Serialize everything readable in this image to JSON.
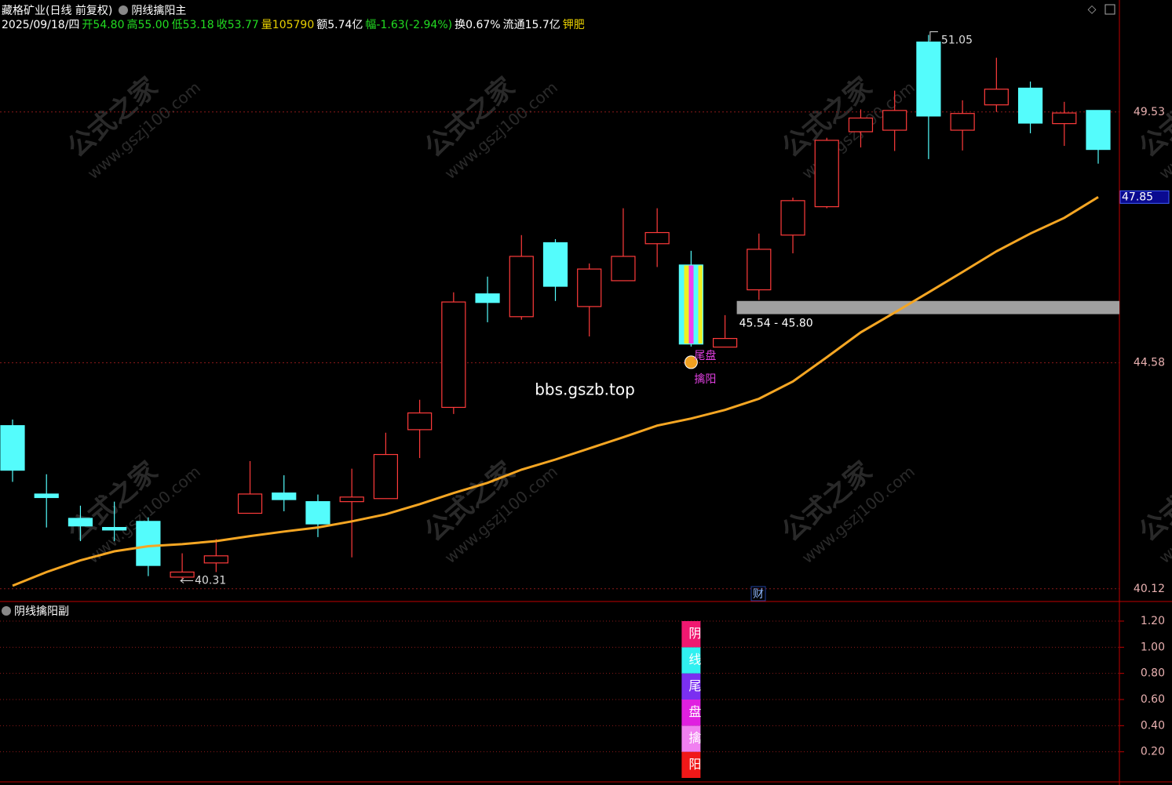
{
  "chart_data": [
    {
      "type": "candlestick",
      "title": "藏格矿业(日线 前复权)",
      "indicator": "阴线擒阳主",
      "quote": [
        {
          "text": "2025/09/18/四",
          "color": "#ffffff"
        },
        {
          "text": "开54.80",
          "color": "#22dd22"
        },
        {
          "text": "高55.00",
          "color": "#22dd22"
        },
        {
          "text": "低53.18",
          "color": "#22dd22"
        },
        {
          "text": "收53.77",
          "color": "#22dd22"
        },
        {
          "text": "量105790",
          "color": "#e8d000"
        },
        {
          "text": "额5.74亿",
          "color": "#ffffff"
        },
        {
          "text": "幅-1.63(-2.94%)",
          "color": "#22dd22"
        },
        {
          "text": "换0.67%",
          "color": "#ffffff"
        },
        {
          "text": "流通15.7亿",
          "color": "#ffffff"
        },
        {
          "text": "钾肥",
          "color": "#e8d000"
        }
      ],
      "open": [
        43.34,
        41.99,
        41.51,
        41.33,
        41.45,
        40.35,
        40.63,
        41.61,
        42.01,
        41.84,
        41.84,
        41.9,
        43.26,
        43.7,
        45.94,
        45.49,
        46.95,
        45.69,
        46.2,
        46.93,
        46.51,
        44.89,
        46.02,
        47.1,
        47.66,
        49.14,
        49.17,
        50.91,
        49.17,
        49.67,
        50.0,
        49.3,
        49.56
      ],
      "high": [
        43.46,
        42.38,
        41.76,
        41.84,
        41.53,
        40.82,
        41.1,
        42.64,
        42.36,
        41.98,
        42.49,
        43.2,
        43.85,
        45.97,
        46.28,
        47.1,
        47.02,
        46.54,
        47.63,
        47.63,
        46.79,
        45.52,
        47.13,
        47.84,
        49.02,
        49.58,
        49.95,
        51.05,
        49.76,
        50.6,
        50.13,
        49.73,
        49.56
      ],
      "low": [
        42.23,
        41.33,
        41.06,
        41.06,
        40.37,
        40.31,
        40.45,
        41.61,
        41.65,
        41.14,
        40.74,
        41.9,
        42.7,
        43.57,
        45.38,
        45.43,
        45.8,
        45.1,
        46.2,
        46.47,
        44.9,
        44.89,
        45.82,
        46.74,
        47.63,
        48.83,
        48.76,
        48.6,
        48.77,
        49.53,
        49.11,
        48.86,
        48.51
      ],
      "close": [
        42.46,
        41.92,
        41.36,
        41.28,
        40.58,
        40.45,
        40.77,
        41.99,
        41.88,
        41.4,
        41.93,
        42.77,
        43.59,
        45.78,
        45.77,
        46.68,
        46.09,
        46.43,
        46.68,
        47.15,
        44.95,
        45.06,
        46.82,
        47.78,
        48.97,
        49.41,
        49.56,
        49.45,
        49.5,
        49.98,
        49.31,
        49.51,
        48.79
      ],
      "up_color": "#ff3b3b",
      "down_color": "#54fcfc",
      "ma": {
        "color": "#f5a623",
        "values": [
          40.18,
          40.45,
          40.68,
          40.86,
          40.96,
          41.0,
          41.06,
          41.16,
          41.25,
          41.33,
          41.45,
          41.59,
          41.79,
          42.01,
          42.21,
          42.47,
          42.67,
          42.89,
          43.11,
          43.34,
          43.48,
          43.65,
          43.87,
          44.21,
          44.69,
          45.18,
          45.57,
          45.97,
          46.37,
          46.78,
          47.13,
          47.44,
          47.85
        ]
      },
      "zone": {
        "low": 45.54,
        "high": 45.8,
        "label": "45.54 - 45.80",
        "color": "#a0a0a0"
      },
      "signal_labels": [
        "尾盘",
        "擒阳"
      ],
      "event": "财",
      "watermark": [
        "公式之家",
        "www.gszj100.com"
      ],
      "site": "bbs.gszb.top",
      "ylim": [
        39.9,
        51.43
      ],
      "yticks": [
        40.12,
        44.58,
        49.53
      ],
      "grid": true
    },
    {
      "type": "stacked_bar",
      "title": "阴线擒阳副",
      "ylim": [
        0,
        1.35
      ],
      "yticks": [
        {
          "value": 0.2,
          "label": "0.20"
        },
        {
          "value": 0.4,
          "label": "0.40"
        },
        {
          "value": 0.6,
          "label": "0.60"
        },
        {
          "value": 0.8,
          "label": "0.80"
        },
        {
          "value": 1.0,
          "label": "1.00"
        },
        {
          "value": 1.2,
          "label": "1.20"
        }
      ],
      "grid": true,
      "series": [
        {
          "name": "阳",
          "color": "#f01818",
          "values": [
            null,
            null,
            null,
            null,
            null,
            null,
            null,
            null,
            null,
            null,
            null,
            null,
            null,
            null,
            null,
            null,
            null,
            null,
            null,
            null,
            0.2,
            null,
            null,
            null,
            null,
            null,
            null,
            null,
            null,
            null,
            null,
            null,
            null
          ]
        },
        {
          "name": "擒",
          "color": "#f080f0",
          "values": [
            null,
            null,
            null,
            null,
            null,
            null,
            null,
            null,
            null,
            null,
            null,
            null,
            null,
            null,
            null,
            null,
            null,
            null,
            null,
            null,
            0.2,
            null,
            null,
            null,
            null,
            null,
            null,
            null,
            null,
            null,
            null,
            null,
            null
          ]
        },
        {
          "name": "盘",
          "color": "#e020e0",
          "values": [
            null,
            null,
            null,
            null,
            null,
            null,
            null,
            null,
            null,
            null,
            null,
            null,
            null,
            null,
            null,
            null,
            null,
            null,
            null,
            null,
            0.2,
            null,
            null,
            null,
            null,
            null,
            null,
            null,
            null,
            null,
            null,
            null,
            null
          ]
        },
        {
          "name": "尾",
          "color": "#7a30f0",
          "values": [
            null,
            null,
            null,
            null,
            null,
            null,
            null,
            null,
            null,
            null,
            null,
            null,
            null,
            null,
            null,
            null,
            null,
            null,
            null,
            null,
            0.2,
            null,
            null,
            null,
            null,
            null,
            null,
            null,
            null,
            null,
            null,
            null,
            null
          ]
        },
        {
          "name": "线",
          "color": "#30f0f0",
          "values": [
            null,
            null,
            null,
            null,
            null,
            null,
            null,
            null,
            null,
            null,
            null,
            null,
            null,
            null,
            null,
            null,
            null,
            null,
            null,
            null,
            0.2,
            null,
            null,
            null,
            null,
            null,
            null,
            null,
            null,
            null,
            null,
            null,
            null
          ]
        },
        {
          "name": "阴",
          "color": "#f01870",
          "values": [
            null,
            null,
            null,
            null,
            null,
            null,
            null,
            null,
            null,
            null,
            null,
            null,
            null,
            null,
            null,
            null,
            null,
            null,
            null,
            null,
            0.2,
            null,
            null,
            null,
            null,
            null,
            null,
            null,
            null,
            null,
            null,
            null,
            null
          ]
        }
      ]
    }
  ]
}
